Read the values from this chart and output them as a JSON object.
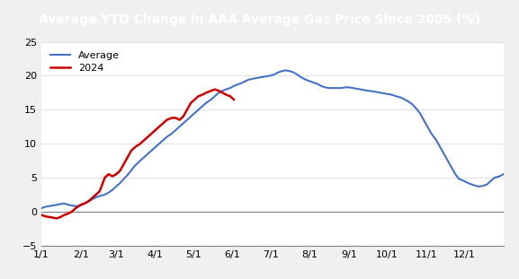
{
  "title": "Average YTD Change in AAA Average Gas Price Since 2005 (%)",
  "title_bg_color": "#1a7a4a",
  "title_text_color": "white",
  "background_color": "#f0f0f0",
  "plot_bg_color": "white",
  "ylim": [
    -5,
    25
  ],
  "yticks": [
    -5,
    0,
    5,
    10,
    15,
    20,
    25
  ],
  "avg_color": "#4472c4",
  "line2024_color": "#cc0000",
  "avg_label": "Average",
  "line2024_label": "2024",
  "avg_x": [
    0,
    3,
    6,
    9,
    12,
    15,
    18,
    21,
    24,
    27,
    31,
    34,
    37,
    40,
    43,
    46,
    50,
    53,
    56,
    59,
    62,
    65,
    68,
    71,
    74,
    78,
    81,
    84,
    87,
    90,
    93,
    96,
    99,
    103,
    106,
    109,
    112,
    115,
    118,
    121,
    124,
    127,
    130,
    134,
    137,
    140,
    143,
    146,
    149,
    152,
    156,
    159,
    162,
    165,
    168,
    171,
    174,
    177,
    180,
    184,
    187,
    190,
    193,
    196,
    199,
    202,
    205,
    208,
    212,
    215,
    218,
    221,
    224,
    227,
    230,
    234,
    237,
    240,
    243,
    246,
    249,
    252,
    255,
    258,
    262,
    265,
    268,
    271,
    274,
    277,
    280,
    284,
    287,
    290,
    293,
    296,
    299,
    302,
    305,
    308,
    312,
    315,
    318,
    321,
    324,
    327,
    330,
    334,
    337,
    340,
    343,
    346,
    349,
    352,
    355,
    358,
    362,
    365
  ],
  "avg_y": [
    0.5,
    0.7,
    0.8,
    0.9,
    1.0,
    1.1,
    1.2,
    1.0,
    0.9,
    0.8,
    0.9,
    1.2,
    1.5,
    1.8,
    2.1,
    2.3,
    2.5,
    2.8,
    3.2,
    3.7,
    4.2,
    4.8,
    5.4,
    6.1,
    6.8,
    7.5,
    8.0,
    8.5,
    9.0,
    9.5,
    10.0,
    10.5,
    11.0,
    11.5,
    12.0,
    12.5,
    13.0,
    13.5,
    14.0,
    14.5,
    15.0,
    15.5,
    16.0,
    16.5,
    17.0,
    17.5,
    17.8,
    18.0,
    18.2,
    18.5,
    18.8,
    19.0,
    19.3,
    19.5,
    19.6,
    19.7,
    19.8,
    19.9,
    20.0,
    20.2,
    20.5,
    20.7,
    20.8,
    20.7,
    20.5,
    20.2,
    19.8,
    19.5,
    19.2,
    19.0,
    18.8,
    18.5,
    18.3,
    18.2,
    18.2,
    18.2,
    18.2,
    18.3,
    18.3,
    18.2,
    18.1,
    18.0,
    17.9,
    17.8,
    17.7,
    17.6,
    17.5,
    17.4,
    17.3,
    17.2,
    17.0,
    16.8,
    16.5,
    16.2,
    15.8,
    15.2,
    14.5,
    13.5,
    12.5,
    11.5,
    10.5,
    9.5,
    8.5,
    7.5,
    6.5,
    5.5,
    4.8,
    4.5,
    4.2,
    4.0,
    3.8,
    3.7,
    3.8,
    4.0,
    4.5,
    5.0,
    5.2,
    5.5
  ],
  "line2024_x": [
    0,
    3,
    6,
    9,
    12,
    15,
    18,
    21,
    24,
    27,
    31,
    34,
    37,
    40,
    43,
    46,
    50,
    53,
    56,
    59,
    62,
    65,
    68,
    71,
    74,
    78,
    81,
    84,
    87,
    90,
    93,
    96,
    99,
    103,
    106,
    109,
    112,
    115,
    118,
    121,
    124,
    127,
    130,
    134,
    137,
    140,
    143,
    146,
    149,
    152
  ],
  "line2024_y": [
    -0.5,
    -0.7,
    -0.8,
    -0.9,
    -1.0,
    -0.8,
    -0.5,
    -0.3,
    0.0,
    0.5,
    1.0,
    1.2,
    1.5,
    2.0,
    2.5,
    3.0,
    5.0,
    5.5,
    5.2,
    5.5,
    6.0,
    7.0,
    8.0,
    9.0,
    9.5,
    10.0,
    10.5,
    11.0,
    11.5,
    12.0,
    12.5,
    13.0,
    13.5,
    13.8,
    13.8,
    13.5,
    14.0,
    15.0,
    16.0,
    16.5,
    17.0,
    17.2,
    17.5,
    17.8,
    18.0,
    17.8,
    17.5,
    17.2,
    17.0,
    16.5
  ],
  "xtick_positions": [
    0,
    31,
    59,
    90,
    120,
    151,
    181,
    212,
    243,
    273,
    304,
    334,
    365
  ],
  "xtick_labels": [
    "1/1",
    "2/1",
    "3/1",
    "4/1",
    "5/1",
    "6/1",
    "7/1",
    "8/1",
    "9/1",
    "10/1",
    "11/1",
    "12/1",
    ""
  ]
}
